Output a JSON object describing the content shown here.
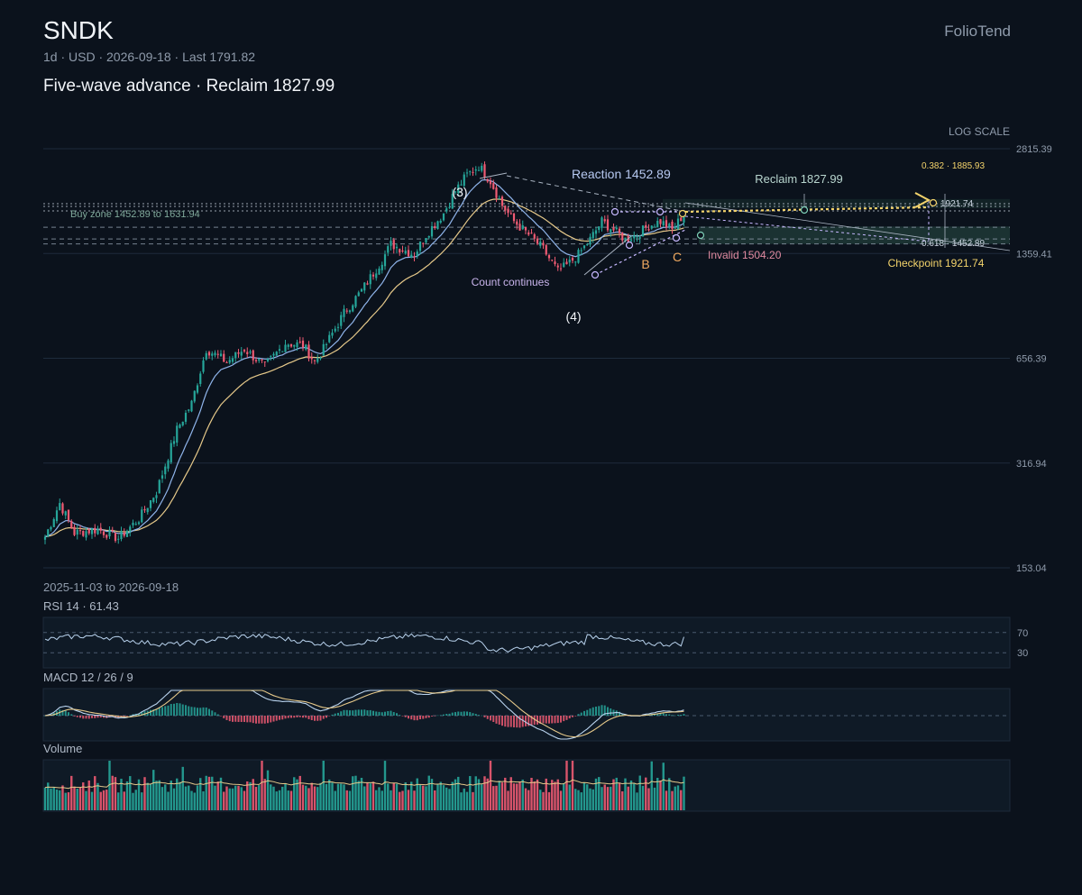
{
  "header": {
    "ticker": "SNDK",
    "meta": "1d · USD · 2026-09-18 · Last 1791.82",
    "subtitle": "Five-wave advance · Reclaim 1827.99",
    "brand": "FolioTend",
    "scale_label": "LOG SCALE",
    "date_range": "2025-11-03 to 2026-09-18"
  },
  "colors": {
    "background": "#0b121c",
    "up": "#26a69a",
    "down": "#ef5b73",
    "ema_fast": "#8fb4ea",
    "ema_slow": "#e6c98a",
    "accent_yellow": "#f3d36b",
    "rsi_line": "#b9d3ee",
    "zone": "#2e5a4d"
  },
  "chart_data": [
    {
      "type": "candlestick",
      "scale": "log",
      "y_ticks": [
        "2815.39",
        "1359.41",
        "656.39",
        "316.94",
        "153.04"
      ],
      "ylim": [
        153.04,
        2815.39
      ],
      "last_price": 1791.82,
      "anchors": [
        {
          "i": 0,
          "v": 190
        },
        {
          "i": 5,
          "v": 240
        },
        {
          "i": 10,
          "v": 195
        },
        {
          "i": 18,
          "v": 200
        },
        {
          "i": 25,
          "v": 188
        },
        {
          "i": 32,
          "v": 215
        },
        {
          "i": 38,
          "v": 260
        },
        {
          "i": 45,
          "v": 400
        },
        {
          "i": 50,
          "v": 480
        },
        {
          "i": 55,
          "v": 700
        },
        {
          "i": 62,
          "v": 640
        },
        {
          "i": 68,
          "v": 700
        },
        {
          "i": 75,
          "v": 620
        },
        {
          "i": 82,
          "v": 730
        },
        {
          "i": 88,
          "v": 720
        },
        {
          "i": 92,
          "v": 640
        },
        {
          "i": 95,
          "v": 700
        },
        {
          "i": 102,
          "v": 900
        },
        {
          "i": 108,
          "v": 1050
        },
        {
          "i": 115,
          "v": 1300
        },
        {
          "i": 118,
          "v": 1450
        },
        {
          "i": 122,
          "v": 1400
        },
        {
          "i": 126,
          "v": 1350
        },
        {
          "i": 130,
          "v": 1550
        },
        {
          "i": 136,
          "v": 1800
        },
        {
          "i": 140,
          "v": 2100
        },
        {
          "i": 144,
          "v": 2350
        },
        {
          "i": 148,
          "v": 2500
        },
        {
          "i": 152,
          "v": 2250
        },
        {
          "i": 156,
          "v": 1900
        },
        {
          "i": 160,
          "v": 1700
        },
        {
          "i": 165,
          "v": 1550
        },
        {
          "i": 170,
          "v": 1400
        },
        {
          "i": 175,
          "v": 1200
        },
        {
          "i": 178,
          "v": 1250
        },
        {
          "i": 182,
          "v": 1350
        },
        {
          "i": 186,
          "v": 1500
        },
        {
          "i": 190,
          "v": 1700
        },
        {
          "i": 194,
          "v": 1600
        },
        {
          "i": 198,
          "v": 1500
        },
        {
          "i": 202,
          "v": 1550
        },
        {
          "i": 206,
          "v": 1650
        },
        {
          "i": 210,
          "v": 1700
        },
        {
          "i": 214,
          "v": 1600
        },
        {
          "i": 218,
          "v": 1791.82
        }
      ],
      "levels": [
        {
          "value": 1921.74,
          "style": "dotted"
        },
        {
          "value": 1885.93,
          "style": "dotted"
        },
        {
          "value": 1827.99,
          "style": "dotted"
        },
        {
          "value": 1631.94,
          "style": "dashed"
        },
        {
          "value": 1504.2,
          "style": "dashed"
        },
        {
          "value": 1452.89,
          "style": "dashed"
        }
      ],
      "buy_zone": [
        1452.89,
        1631.94
      ],
      "annotations": {
        "buy_zone": "Buy zone 1452.89 to 1631.94",
        "reaction": "Reaction 1452.89",
        "reclaim": "Reclaim 1827.99",
        "fib_382": "0.382 · 1885.93",
        "fib_top": "1921.74",
        "fib_618": "0.618 · 1452.89",
        "checkpoint": "Checkpoint 1921.74",
        "invalid": "Invalid 1504.20",
        "wave_3": "(3)",
        "wave_4": "(4)",
        "wave_b": "B",
        "wave_c": "C",
        "count_continues": "Count continues"
      }
    },
    {
      "type": "line",
      "name": "RSI 14",
      "label": "RSI 14 · 61.43",
      "last_value": 61.43,
      "ylim": [
        0,
        100
      ],
      "levels": [
        "70",
        "30"
      ]
    },
    {
      "type": "line",
      "name": "MACD 12 / 26 / 9",
      "label": "MACD 12 / 26 / 9"
    },
    {
      "type": "bar",
      "name": "Volume",
      "label": "Volume"
    }
  ]
}
